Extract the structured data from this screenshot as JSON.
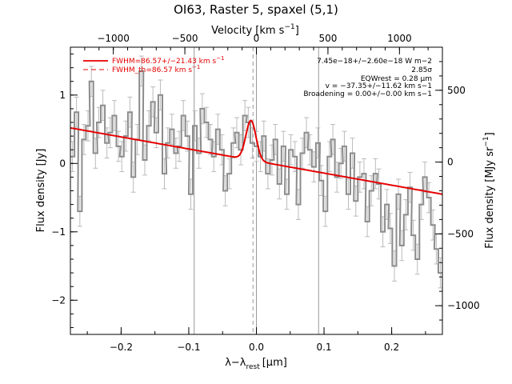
{
  "chart_data": {
    "type": "line",
    "title": "OI63, Raster 5, spaxel (5,1)",
    "xlabel": "λ−λ",
    "xlabel_sub": "rest",
    "xlabel_unit": "[μm]",
    "ylabel": "Flux density [Jy]",
    "y2label": "Flux density [MJy sr",
    "y2label_sup": "−1",
    "y2label_end": "]",
    "x2label": "Velocity [km s",
    "x2label_sup": "−1",
    "x2label_end": "]",
    "xlim": [
      -0.275,
      0.275
    ],
    "ylim": [
      -2.5,
      1.7
    ],
    "x2lim": [
      -1300,
      1300
    ],
    "y2lim": [
      -1200,
      800
    ],
    "xticks": [
      -0.2,
      -0.1,
      0.0,
      0.1,
      0.2
    ],
    "xtick_labels": [
      "−0.2",
      "−0.1",
      "0.0",
      "0.1",
      "0.2"
    ],
    "yticks": [
      -2,
      -1,
      0,
      1
    ],
    "ytick_labels": [
      "−2",
      "−1",
      "0",
      "1"
    ],
    "x2ticks": [
      -1000,
      -500,
      0,
      500,
      1000
    ],
    "x2tick_labels": [
      "−1000",
      "−500",
      "0",
      "500",
      "1000"
    ],
    "y2ticks": [
      -1000,
      -500,
      0,
      500
    ],
    "y2tick_labels": [
      "−1000",
      "−500",
      "0",
      "500"
    ],
    "vlines_solid": [
      -0.092,
      0.0,
      0.092
    ],
    "vline_dashed": -0.005,
    "legend_position": "top-left",
    "legend": [
      {
        "label": "FWHM=86.57+/−21.43 km s",
        "sup": "−1",
        "style": "solid"
      },
      {
        "label": "FWHM_th=86.57 km s",
        "sup": "−1",
        "style": "dashed"
      }
    ],
    "annotations": [
      "7.45e−18+/−2.60e−18 W m−2",
      "2.85σ",
      "EQWrest = 0.28 μm",
      "v = −37.35+/−11.62 km s−1",
      "Broadening = 0.00+/−0.00 km s−1"
    ],
    "data_series": {
      "name": "data",
      "color": "#8c8c8c",
      "x": [
        -0.272,
        -0.266,
        -0.261,
        -0.255,
        -0.249,
        -0.244,
        -0.238,
        -0.233,
        -0.227,
        -0.221,
        -0.216,
        -0.21,
        -0.204,
        -0.199,
        -0.193,
        -0.187,
        -0.182,
        -0.176,
        -0.17,
        -0.165,
        -0.159,
        -0.153,
        -0.148,
        -0.142,
        -0.136,
        -0.131,
        -0.125,
        -0.119,
        -0.114,
        -0.108,
        -0.102,
        -0.097,
        -0.091,
        -0.085,
        -0.08,
        -0.074,
        -0.068,
        -0.063,
        -0.057,
        -0.051,
        -0.046,
        -0.04,
        -0.034,
        -0.029,
        -0.023,
        -0.017,
        -0.012,
        -0.006,
        0.0,
        0.006,
        0.011,
        0.017,
        0.023,
        0.028,
        0.034,
        0.04,
        0.045,
        0.051,
        0.057,
        0.062,
        0.068,
        0.074,
        0.079,
        0.085,
        0.091,
        0.096,
        0.102,
        0.108,
        0.113,
        0.119,
        0.125,
        0.13,
        0.136,
        0.142,
        0.147,
        0.153,
        0.159,
        0.164,
        0.17,
        0.176,
        0.181,
        0.187,
        0.193,
        0.198,
        0.204,
        0.21,
        0.215,
        0.221,
        0.227,
        0.232,
        0.238,
        0.244,
        0.249,
        0.255,
        0.261,
        0.266,
        0.272
      ],
      "y": [
        0.1,
        0.75,
        -0.7,
        0.35,
        0.55,
        1.2,
        0.15,
        0.6,
        0.85,
        0.3,
        0.45,
        0.7,
        0.25,
        0.1,
        0.4,
        0.75,
        -0.2,
        0.35,
        1.35,
        0.05,
        0.55,
        0.9,
        0.45,
        1.0,
        -0.15,
        0.3,
        0.5,
        0.15,
        0.25,
        0.7,
        0.4,
        -0.45,
        0.55,
        0.15,
        0.8,
        0.6,
        0.35,
        0.1,
        0.5,
        0.2,
        -0.4,
        -0.15,
        0.3,
        0.45,
        0.2,
        0.7,
        0.6,
        0.3,
        0.25,
        0.1,
        0.4,
        -0.15,
        0.05,
        0.35,
        -0.3,
        0.25,
        -0.45,
        0.2,
        0.1,
        -0.6,
        0.15,
        0.45,
        0.2,
        -0.05,
        0.3,
        -0.25,
        -0.7,
        0.1,
        0.35,
        -0.2,
        0.0,
        0.25,
        -0.45,
        0.15,
        -0.55,
        -0.2,
        -0.15,
        -0.85,
        -0.4,
        -0.15,
        -0.3,
        -1.0,
        -0.6,
        -0.95,
        -1.5,
        -0.45,
        -1.2,
        -0.75,
        -0.35,
        -1.05,
        -1.4,
        -0.6,
        -0.2,
        -0.5,
        -0.9,
        -1.25,
        -1.6
      ],
      "err": 0.22
    },
    "fit_series": {
      "name": "fit",
      "color": "#e60000",
      "continuum": {
        "x": [
          -0.275,
          0.275
        ],
        "y": [
          0.52,
          -0.45
        ]
      },
      "gaussian": {
        "center": -0.008,
        "sigma": 0.0075,
        "amplitude": 0.58
      }
    }
  }
}
